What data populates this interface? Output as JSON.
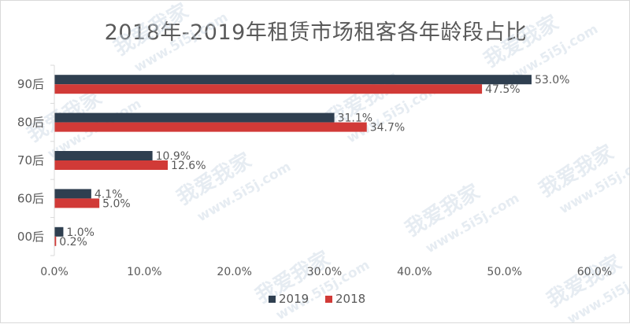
{
  "watermark": {
    "brand": "我爱我家",
    "url": "www.5i5j.com"
  },
  "chart_data": {
    "type": "bar",
    "orientation": "horizontal",
    "title": "2018年-2019年租赁市场租客各年龄段占比",
    "categories": [
      "90后",
      "80后",
      "70后",
      "60后",
      "00后"
    ],
    "series": [
      {
        "name": "2019",
        "color": "#2f3f50",
        "values": [
          53.0,
          31.1,
          10.9,
          4.1,
          1.0
        ],
        "labels": [
          "53.0%",
          "31.1%",
          "10.9%",
          "4.1%",
          "1.0%"
        ]
      },
      {
        "name": "2018",
        "color": "#d13a37",
        "values": [
          47.5,
          34.7,
          12.6,
          5.0,
          0.2
        ],
        "labels": [
          "47.5%",
          "34.7%",
          "12.6%",
          "5.0%",
          "0.2%"
        ]
      }
    ],
    "x_ticks": [
      "0.0%",
      "10.0%",
      "20.0%",
      "30.0%",
      "40.0%",
      "50.0%",
      "60.0%"
    ],
    "xlim": [
      0,
      60
    ],
    "grid": false,
    "legend_position": "bottom"
  }
}
